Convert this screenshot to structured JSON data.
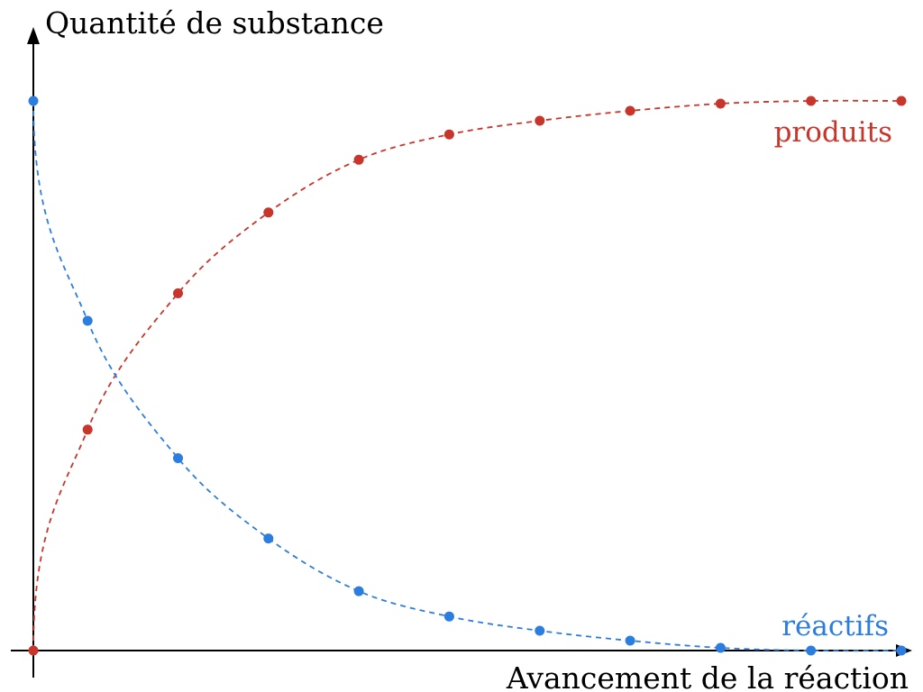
{
  "chart_data": {
    "type": "scatter",
    "xlabel": "Avancement de la réaction",
    "ylabel": "Quantité de substance",
    "xlim": [
      0,
      9.6
    ],
    "ylim": [
      0,
      1.0
    ],
    "grid": false,
    "series": [
      {
        "name": "produits",
        "color": "#c8352a",
        "x": [
          0,
          0.6,
          1.6,
          2.6,
          3.6,
          4.6,
          5.6,
          6.6,
          7.6,
          8.6,
          9.6
        ],
        "y": [
          0,
          0.402,
          0.65,
          0.797,
          0.893,
          0.939,
          0.964,
          0.982,
          0.995,
          1.0,
          1.0
        ]
      },
      {
        "name": "réactifs",
        "color": "#2b7de0",
        "x": [
          0,
          0.6,
          1.6,
          2.6,
          3.6,
          4.6,
          5.6,
          6.6,
          7.6,
          8.6,
          9.6
        ],
        "y": [
          1.0,
          0.6,
          0.35,
          0.204,
          0.108,
          0.062,
          0.036,
          0.018,
          0.005,
          0.0,
          0.0
        ]
      }
    ]
  }
}
